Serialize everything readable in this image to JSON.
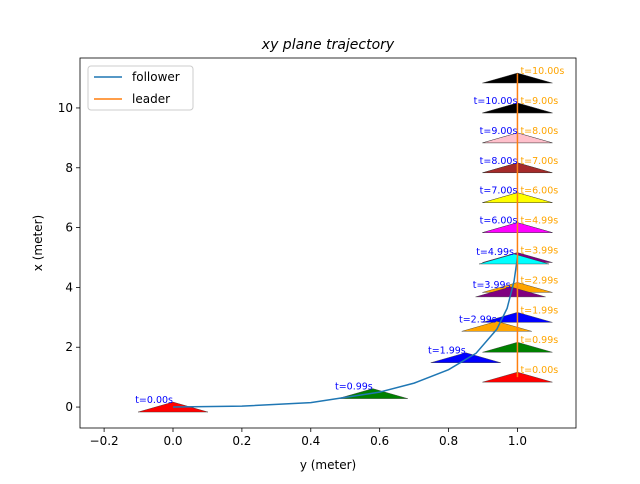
{
  "chart_data": {
    "type": "trajectory",
    "title": "xy plane trajectory",
    "x_label": "y (meter)",
    "y_label": "x (meter)",
    "xlim": [
      -0.27,
      1.17
    ],
    "ylim": [
      -0.7,
      11.67
    ],
    "xticks": [
      {
        "value": -0.2,
        "label": "−0.2"
      },
      {
        "value": 0,
        "label": "0.0"
      },
      {
        "value": 0.2,
        "label": "0.2"
      },
      {
        "value": 0.4,
        "label": "0.4"
      },
      {
        "value": 0.6,
        "label": "0.6"
      },
      {
        "value": 0.8,
        "label": "0.8"
      },
      {
        "value": 1,
        "label": "1.0"
      }
    ],
    "yticks": [
      0,
      2,
      4,
      6,
      8,
      10
    ],
    "legend": "upper left",
    "series": [
      {
        "name": "follower",
        "color": "#1f77b4",
        "x": [
          0,
          0.2,
          0.4,
          0.6,
          0.7,
          0.8,
          0.88,
          0.94,
          0.97,
          0.99,
          1.0
        ],
        "values": [
          0,
          0.03,
          0.15,
          0.5,
          0.8,
          1.25,
          1.8,
          2.6,
          3.3,
          4.2,
          5.0
        ]
      },
      {
        "name": "leader",
        "color": "#ff7f0e",
        "x": [
          1,
          1
        ],
        "values": [
          1,
          11.15
        ]
      }
    ],
    "pose_colors": [
      "red",
      "green",
      "blue",
      "orange",
      "purple",
      "cyan",
      "magenta",
      "yellow",
      "brown",
      "pink",
      "black"
    ],
    "follower_poses": {
      "label_color": "blue",
      "labels": [
        "t=0.00s",
        "t=0.99s",
        "t=1.99s",
        "t=2.99s",
        "t=3.99s",
        "t=4.99s",
        "t=6.00s",
        "t=7.00s",
        "t=8.00s",
        "t=9.00s",
        "t=10.00s"
      ],
      "x": [
        0,
        0.58,
        0.85,
        0.94,
        0.98,
        0.99,
        1,
        1,
        1,
        1,
        1
      ],
      "values": [
        0,
        0.45,
        1.65,
        2.7,
        3.85,
        4.95,
        6,
        7,
        8,
        9,
        10
      ]
    },
    "leader_poses": {
      "label_color": "orange",
      "labels": [
        "t=0.00s",
        "t=0.99s",
        "t=1.99s",
        "t=2.99s",
        "t=3.99s",
        "t=4.99s",
        "t=6.00s",
        "t=7.00s",
        "t=8.00s",
        "t=9.00s",
        "t=10.00s"
      ],
      "x": [
        1,
        1,
        1,
        1,
        1,
        1,
        1,
        1,
        1,
        1,
        1
      ],
      "values": [
        1,
        2,
        3,
        4,
        5,
        6,
        7,
        8,
        9,
        10,
        11
      ]
    }
  }
}
